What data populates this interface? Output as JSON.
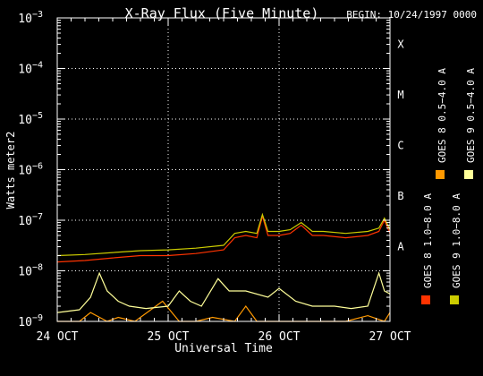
{
  "chart_data": {
    "type": "line",
    "title": "X-Ray Flux (Five Minute)",
    "begin_label": "BEGIN: 10/24/1997 0000",
    "xlabel": "Universal Time",
    "ylabel": "Watts meter2",
    "y_scale": "log",
    "ylim": [
      1e-09,
      0.001
    ],
    "y_ticks": [
      {
        "base": "10",
        "exp": "−3",
        "value": 0.001
      },
      {
        "base": "10",
        "exp": "−4",
        "value": 0.0001
      },
      {
        "base": "10",
        "exp": "−5",
        "value": 1e-05
      },
      {
        "base": "10",
        "exp": "−6",
        "value": 1e-06
      },
      {
        "base": "10",
        "exp": "−7",
        "value": 1e-07
      },
      {
        "base": "10",
        "exp": "−8",
        "value": 1e-08
      },
      {
        "base": "10",
        "exp": "−9",
        "value": 1e-09
      }
    ],
    "x_ticks": [
      {
        "label": "24 OCT",
        "day": 0
      },
      {
        "label": "25 OCT",
        "day": 1
      },
      {
        "label": "26 OCT",
        "day": 2
      },
      {
        "label": "27 OCT",
        "day": 3
      }
    ],
    "xlim_days": [
      0,
      3
    ],
    "flare_classes": [
      {
        "label": "X",
        "value": 0.000316
      },
      {
        "label": "M",
        "value": 3.16e-05
      },
      {
        "label": "C",
        "value": 3.16e-06
      },
      {
        "label": "B",
        "value": 3.16e-07
      },
      {
        "label": "A",
        "value": 3.16e-08
      }
    ],
    "grid": true,
    "legend_position": "right",
    "series": [
      {
        "name": "GOES 8 1.0−8.0 A",
        "color": "#ff3300",
        "x": [
          0,
          0.25,
          0.5,
          0.75,
          1.0,
          1.25,
          1.5,
          1.6,
          1.7,
          1.8,
          1.85,
          1.9,
          2.0,
          2.1,
          2.2,
          2.3,
          2.4,
          2.6,
          2.8,
          2.9,
          2.95,
          3.0
        ],
        "y": [
          1.5e-08,
          1.6e-08,
          1.8e-08,
          2e-08,
          2e-08,
          2.2e-08,
          2.6e-08,
          4.5e-08,
          5e-08,
          4.5e-08,
          1.2e-07,
          5e-08,
          5e-08,
          5.5e-08,
          8e-08,
          5e-08,
          5e-08,
          4.5e-08,
          5e-08,
          6e-08,
          1e-07,
          5.5e-08
        ]
      },
      {
        "name": "GOES 8 0.5−4.0 A",
        "color": "#ff9900",
        "x": [
          0,
          0.2,
          0.3,
          0.45,
          0.55,
          0.7,
          0.95,
          1.1,
          1.25,
          1.4,
          1.6,
          1.7,
          1.8,
          2.0,
          2.2,
          2.4,
          2.6,
          2.8,
          2.95,
          3.0
        ],
        "y": [
          1e-09,
          1e-09,
          1.5e-09,
          1e-09,
          1.2e-09,
          1e-09,
          2.5e-09,
          1e-09,
          1e-09,
          1.2e-09,
          1e-09,
          2e-09,
          1e-09,
          1e-09,
          1e-09,
          1e-09,
          1e-09,
          1.3e-09,
          1e-09,
          1.5e-09
        ]
      },
      {
        "name": "GOES 9 1.0−8.0 A",
        "color": "#cccc00",
        "x": [
          0,
          0.25,
          0.5,
          0.75,
          1.0,
          1.25,
          1.5,
          1.6,
          1.7,
          1.8,
          1.85,
          1.9,
          2.0,
          2.1,
          2.2,
          2.3,
          2.4,
          2.6,
          2.8,
          2.9,
          2.95,
          3.0
        ],
        "y": [
          2e-08,
          2.1e-08,
          2.3e-08,
          2.5e-08,
          2.6e-08,
          2.8e-08,
          3.2e-08,
          5.5e-08,
          6e-08,
          5.5e-08,
          1.3e-07,
          6e-08,
          6e-08,
          6.5e-08,
          9e-08,
          6e-08,
          6e-08,
          5.5e-08,
          6e-08,
          7e-08,
          1.1e-07,
          6.5e-08
        ]
      },
      {
        "name": "GOES 9 0.5−4.0 A",
        "color": "#ffff99",
        "x": [
          0,
          0.2,
          0.3,
          0.38,
          0.45,
          0.55,
          0.65,
          0.8,
          1.0,
          1.1,
          1.2,
          1.3,
          1.45,
          1.55,
          1.7,
          1.9,
          2.0,
          2.15,
          2.3,
          2.5,
          2.65,
          2.8,
          2.9,
          2.95,
          3.0
        ],
        "y": [
          1.5e-09,
          1.7e-09,
          3e-09,
          9e-09,
          4e-09,
          2.5e-09,
          2e-09,
          1.8e-09,
          2e-09,
          4e-09,
          2.5e-09,
          2e-09,
          7e-09,
          4e-09,
          4e-09,
          3e-09,
          4.5e-09,
          2.5e-09,
          2e-09,
          2e-09,
          1.8e-09,
          2e-09,
          9e-09,
          4e-09,
          3.5e-09
        ]
      }
    ]
  }
}
